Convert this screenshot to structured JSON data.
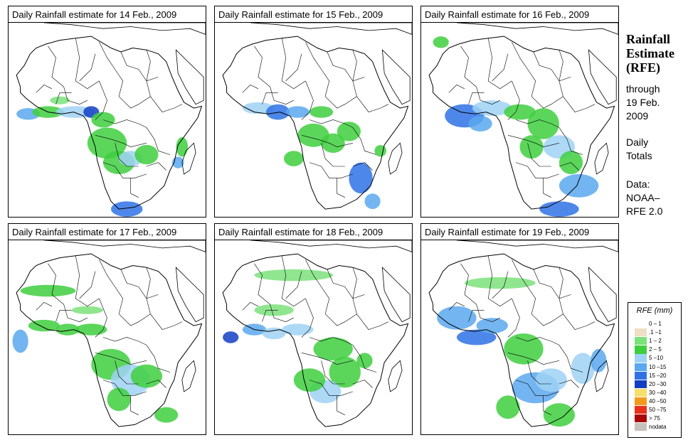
{
  "panels": [
    {
      "title": "Daily Rainfall estimate for  14 Feb., 2009"
    },
    {
      "title": "Daily Rainfall estimate for  15 Feb., 2009"
    },
    {
      "title": "Daily Rainfall estimate for  16 Feb., 2009"
    },
    {
      "title": "Daily Rainfall estimate for  17 Feb., 2009"
    },
    {
      "title": "Daily Rainfall estimate for  18 Feb., 2009"
    },
    {
      "title": "Daily Rainfall estimate for  19 Feb., 2009"
    }
  ],
  "side": {
    "title_line1": "Rainfall",
    "title_line2": "Estimate",
    "title_line3": "(RFE)",
    "through": "through",
    "date_line1": "19 Feb.",
    "date_line2": "2009",
    "daily": "Daily",
    "totals": "Totals",
    "data_label": "Data:",
    "source_line1": "NOAA–",
    "source_line2": "RFE 2.0"
  },
  "legend": {
    "title": "RFE (mm)",
    "items": [
      {
        "label": "0 – 1",
        "color": "#ffffff"
      },
      {
        "label": ".1 –1",
        "color": "#eedfc6"
      },
      {
        "label": "1 – 2",
        "color": "#7be27b"
      },
      {
        "label": "2 – 5",
        "color": "#3ecf3e"
      },
      {
        "label": "5 –10",
        "color": "#9fd2f5"
      },
      {
        "label": "10 –15",
        "color": "#5aa8ee"
      },
      {
        "label": "15 –20",
        "color": "#2f72e6"
      },
      {
        "label": "20 –30",
        "color": "#123ec4"
      },
      {
        "label": "30 –40",
        "color": "#f7df6e"
      },
      {
        "label": "40 –50",
        "color": "#f39a1c"
      },
      {
        "label": "50 –75",
        "color": "#e8301a"
      },
      {
        "label": "> 75",
        "color": "#a80808"
      },
      {
        "label": "nodata",
        "color": "#c8c0ba"
      }
    ]
  }
}
